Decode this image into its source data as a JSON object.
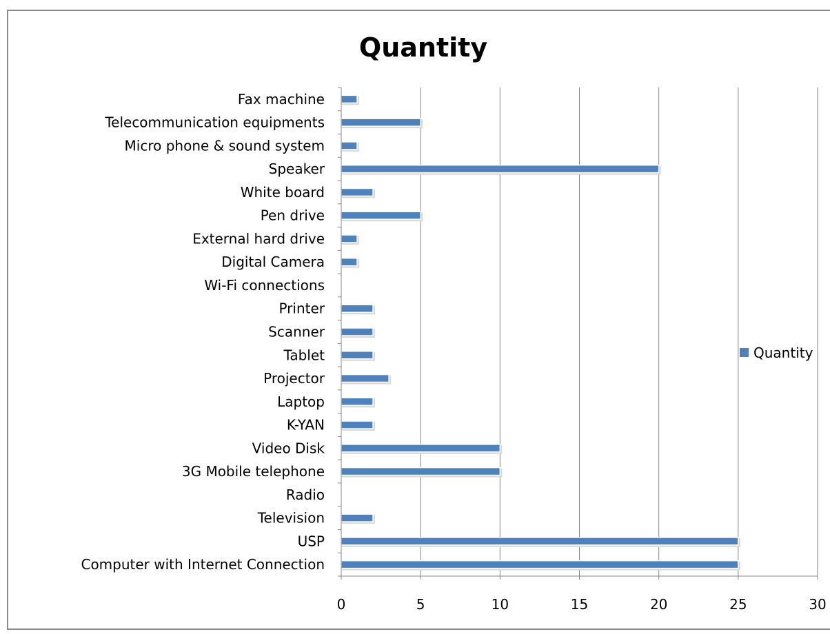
{
  "chart_data": {
    "type": "bar",
    "orientation": "horizontal",
    "title": "Quantity",
    "xlabel": "",
    "ylabel": "",
    "xlim": [
      0,
      30
    ],
    "xticks": [
      0,
      5,
      10,
      15,
      20,
      25,
      30
    ],
    "grid": "vertical major gridlines",
    "legend_position": "right",
    "bar_color": "#4F81BD",
    "series": [
      {
        "name": "Quantity",
        "values": [
          1,
          5,
          1,
          20,
          2,
          5,
          1,
          1,
          0,
          2,
          2,
          2,
          3,
          2,
          2,
          10,
          10,
          0,
          2,
          25,
          25
        ]
      }
    ],
    "categories": [
      "Fax machine",
      "Telecommunication equipments",
      "Micro phone & sound system",
      "Speaker",
      "White board",
      "Pen drive",
      "External hard drive",
      "Digital Camera",
      "Wi-Fi connections",
      "Printer",
      "Scanner",
      "Tablet",
      "Projector",
      "Laptop",
      "K-YAN",
      "Video Disk",
      "3G Mobile telephone",
      "Radio",
      "Television",
      "USP",
      "Computer with Internet Connection"
    ]
  }
}
